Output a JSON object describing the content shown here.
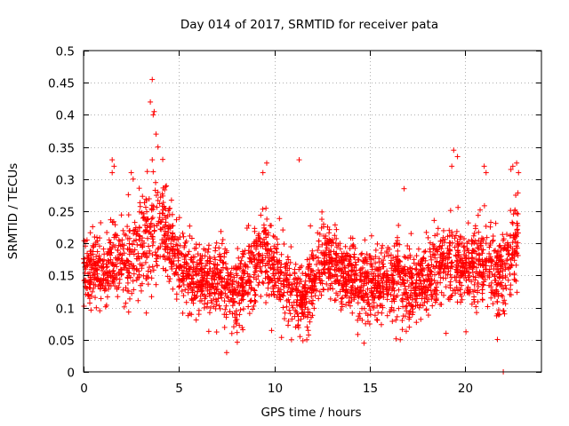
{
  "chart_data": {
    "type": "scatter",
    "title": "Day 014 of 2017, SRMTID for receiver pata",
    "xlabel": "GPS time / hours",
    "ylabel": "SRMTID / TECUs",
    "xlim": [
      0,
      24
    ],
    "ylim": [
      0,
      0.5
    ],
    "xticks": [
      0,
      5,
      10,
      15,
      20
    ],
    "xtick_labels": [
      "0",
      "5",
      "10",
      "15",
      "20"
    ],
    "yticks": [
      0,
      0.05,
      0.1,
      0.15,
      0.2,
      0.25,
      0.3,
      0.35,
      0.4,
      0.45,
      0.5
    ],
    "ytick_labels": [
      "0",
      "0.05",
      "0.1",
      "0.15",
      "0.2",
      "0.25",
      "0.3",
      "0.35",
      "0.4",
      "0.45",
      "0.5"
    ],
    "grid": true,
    "marker": "+",
    "color": "#ff0000",
    "series": [
      {
        "name": "SRMTID",
        "profile_hours": [
          0,
          1,
          1.5,
          2.5,
          3.5,
          4.2,
          5,
          6,
          7,
          8,
          9.5,
          10.5,
          11.5,
          12.5,
          13.5,
          15,
          16.5,
          17.5,
          19,
          20,
          21,
          22,
          22.8
        ],
        "profile_mean": [
          0.15,
          0.16,
          0.17,
          0.17,
          0.21,
          0.22,
          0.17,
          0.14,
          0.15,
          0.12,
          0.19,
          0.14,
          0.11,
          0.18,
          0.15,
          0.13,
          0.15,
          0.13,
          0.17,
          0.16,
          0.17,
          0.15,
          0.21
        ],
        "profile_spread": [
          0.05,
          0.05,
          0.06,
          0.06,
          0.08,
          0.07,
          0.05,
          0.05,
          0.05,
          0.05,
          0.06,
          0.05,
          0.05,
          0.05,
          0.05,
          0.05,
          0.06,
          0.05,
          0.06,
          0.06,
          0.06,
          0.06,
          0.06
        ],
        "x_range": [
          0,
          22.8
        ],
        "n_points": 3000,
        "extreme_points": [
          {
            "x": 3.6,
            "y": 0.455
          },
          {
            "x": 3.5,
            "y": 0.42
          },
          {
            "x": 3.7,
            "y": 0.405
          },
          {
            "x": 3.65,
            "y": 0.4
          },
          {
            "x": 3.8,
            "y": 0.37
          },
          {
            "x": 3.9,
            "y": 0.35
          },
          {
            "x": 3.6,
            "y": 0.33
          },
          {
            "x": 1.5,
            "y": 0.33
          },
          {
            "x": 1.6,
            "y": 0.32
          },
          {
            "x": 1.5,
            "y": 0.31
          },
          {
            "x": 2.5,
            "y": 0.31
          },
          {
            "x": 2.6,
            "y": 0.3
          },
          {
            "x": 9.6,
            "y": 0.325
          },
          {
            "x": 9.4,
            "y": 0.31
          },
          {
            "x": 11.3,
            "y": 0.33
          },
          {
            "x": 16.8,
            "y": 0.285
          },
          {
            "x": 19.4,
            "y": 0.345
          },
          {
            "x": 19.6,
            "y": 0.335
          },
          {
            "x": 19.3,
            "y": 0.32
          },
          {
            "x": 21.0,
            "y": 0.32
          },
          {
            "x": 21.1,
            "y": 0.31
          },
          {
            "x": 22.4,
            "y": 0.315
          },
          {
            "x": 22.5,
            "y": 0.32
          },
          {
            "x": 22.7,
            "y": 0.325
          },
          {
            "x": 22.8,
            "y": 0.31
          },
          {
            "x": 7.5,
            "y": 0.03
          },
          {
            "x": 22.0,
            "y": 0.0
          },
          {
            "x": 11.7,
            "y": 0.05
          },
          {
            "x": 10.9,
            "y": 0.05
          },
          {
            "x": 16.6,
            "y": 0.05
          },
          {
            "x": 19.0,
            "y": 0.06
          }
        ]
      }
    ]
  }
}
